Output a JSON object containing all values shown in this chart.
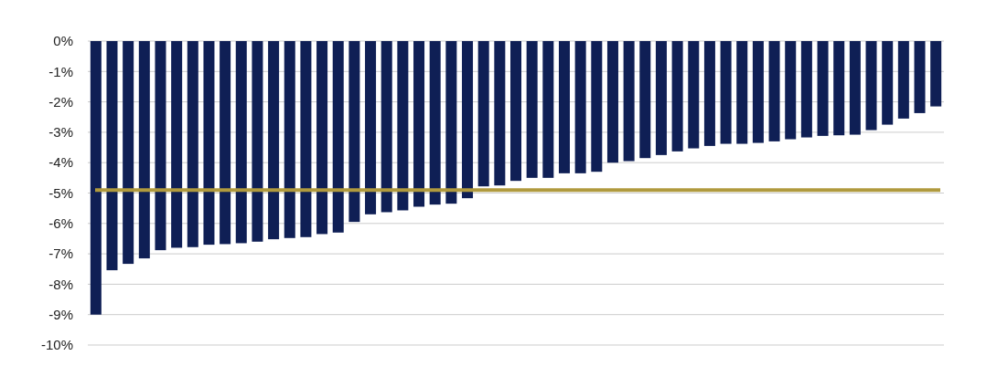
{
  "chart_data": {
    "type": "bar",
    "categories": [
      null,
      null,
      null,
      null,
      null,
      null,
      null,
      null,
      null,
      null,
      null,
      null,
      null,
      null,
      null,
      null,
      null,
      null,
      null,
      null,
      null,
      null,
      null,
      null,
      null,
      null,
      null,
      null,
      null,
      null,
      null,
      null,
      null,
      null,
      null,
      null,
      null,
      null,
      null,
      null,
      null,
      null,
      null,
      null,
      null,
      null,
      null,
      null,
      null,
      null,
      null,
      null,
      null
    ],
    "values": [
      -9.0,
      -7.54,
      -7.33,
      -7.15,
      -6.88,
      -6.8,
      -6.78,
      -6.7,
      -6.68,
      -6.65,
      -6.6,
      -6.52,
      -6.48,
      -6.45,
      -6.35,
      -6.3,
      -5.95,
      -5.7,
      -5.63,
      -5.57,
      -5.45,
      -5.38,
      -5.35,
      -5.17,
      -4.78,
      -4.75,
      -4.6,
      -4.5,
      -4.5,
      -4.35,
      -4.35,
      -4.3,
      -4.0,
      -3.95,
      -3.85,
      -3.75,
      -3.63,
      -3.53,
      -3.45,
      -3.38,
      -3.38,
      -3.35,
      -3.3,
      -3.23,
      -3.17,
      -3.12,
      -3.1,
      -3.08,
      -2.93,
      -2.75,
      -2.55,
      -2.37,
      -2.15
    ],
    "color": "#0f1f55",
    "ylim": [
      -10,
      0
    ],
    "yticks": [
      {
        "value": 0,
        "label": "0%"
      },
      {
        "value": -1,
        "label": "-1%"
      },
      {
        "value": -2,
        "label": "-2%"
      },
      {
        "value": -3,
        "label": "-3%"
      },
      {
        "value": -4,
        "label": "-4%"
      },
      {
        "value": -5,
        "label": "-5%"
      },
      {
        "value": -6,
        "label": "-6%"
      },
      {
        "value": -7,
        "label": "-7%"
      },
      {
        "value": -8,
        "label": "-8%"
      },
      {
        "value": -9,
        "label": "-9%"
      },
      {
        "value": -10,
        "label": "-10%"
      }
    ],
    "grid": "y",
    "ref_lines": [
      {
        "axis": "y",
        "value": -4.9,
        "color": "#b09a3e"
      }
    ]
  }
}
